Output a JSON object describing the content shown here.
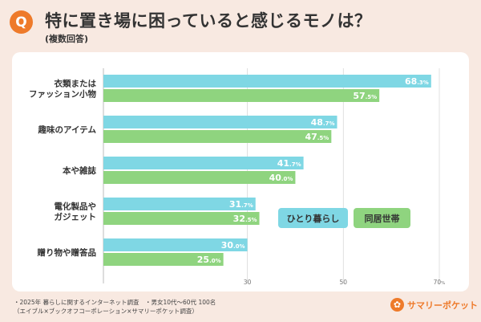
{
  "header": {
    "badge": "Q",
    "title": "特に置き場に困っていると感じるモノは？",
    "subtitle": "(複数回答)"
  },
  "chart_data": {
    "type": "bar",
    "orientation": "horizontal",
    "categories": [
      [
        "衣類またはファッション小物",
        "衣類または",
        "ファッション小物"
      ],
      [
        "趣味のアイテム"
      ],
      [
        "本や雑誌"
      ],
      [
        "電化製品やガジェット",
        "電化製品や",
        "ガジェット"
      ],
      [
        "贈り物や贈答品"
      ]
    ],
    "series": [
      {
        "name": "ひとり暮らし",
        "color": "#7fd7e4",
        "text_color": "#56c3d4",
        "values": [
          68.3,
          48.7,
          41.7,
          31.7,
          30.0
        ],
        "labels": [
          [
            "68",
            ".3%"
          ],
          [
            "48",
            ".7%"
          ],
          [
            "41",
            ".7%"
          ],
          [
            "31",
            ".7%"
          ],
          [
            "30",
            ".0%"
          ]
        ]
      },
      {
        "name": "同居世帯",
        "color": "#8fd47f",
        "text_color": "#5fb04f",
        "values": [
          57.5,
          47.5,
          40.0,
          32.5,
          25.0
        ],
        "labels": [
          [
            "57",
            ".5%"
          ],
          [
            "47",
            ".5%"
          ],
          [
            "40",
            ".0%"
          ],
          [
            "32",
            ".5%"
          ],
          [
            "25",
            ".0%"
          ]
        ]
      }
    ],
    "xlim": [
      0,
      70
    ],
    "xticks": [
      [
        "30",
        ""
      ],
      [
        "50",
        ""
      ],
      [
        "70",
        "%"
      ]
    ],
    "tick_values": [
      30,
      50,
      70
    ],
    "grid": true,
    "legend": "center-right"
  },
  "notes": [
    "・2025年 暮らしに関するインターネット調査　・男女10代〜60代 100名",
    "（エイブル×ブックオフコーポレーション×サマリーポケット調査）"
  ],
  "brand": {
    "name": "サマリーポケット",
    "mark": "✿"
  }
}
